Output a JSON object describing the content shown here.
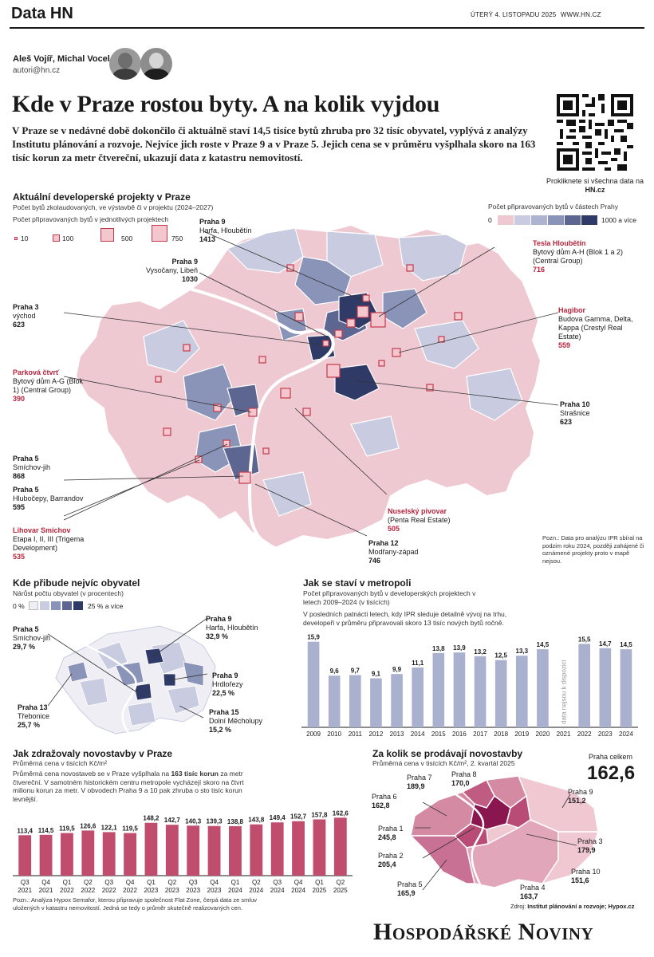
{
  "masthead": {
    "brand": "Data HN",
    "date": "ÚTERÝ 4. LISTOPADU 2025",
    "site": "WWW.HN.CZ"
  },
  "authors": {
    "names": "Aleš Vojíř, Michal Vocel",
    "email": "autori@hn.cz"
  },
  "headline": "Kde v Praze rostou byty. A na kolik vyjdou",
  "lead": "V Praze se v nedávné době dokončilo či aktuálně staví 14,5 tisíce bytů zhruba pro 32 tisíc obyvatel, vyplývá z analýzy Institutu plánování a rozvoje. Nejvíce jich roste v Praze 9 a v Praze 5. Jejich cena se v průměru vyšplhala skoro na 163 tisíc korun za metr čtvereční, ukazují data z katastru nemovitostí.",
  "qr": {
    "caption": "Prokliknete si všechna data na",
    "caption_site": "HN.cz"
  },
  "colors": {
    "accent": "#b8243c",
    "bar_blue": "#a9b1cf",
    "bar_red": "#c04c6e",
    "map_pink": "#efc9d2",
    "map_light": "#c9cce0",
    "map_mid": "#8a93b8",
    "map_dark": "#2f3b66"
  },
  "map": {
    "title": "Aktuální developerské projekty v Praze",
    "subtitle": "Počet bytů zkolaudovaných, ve výstavbě či v projektu (2024–2027)",
    "size_legend_title": "Počet připravovaných bytů v jednotlivých projektech",
    "size_legend": [
      "10",
      "100",
      "500",
      "750"
    ],
    "color_legend_title": "Počet připravovaných bytů v částech Prahy",
    "color_legend_min": "0",
    "color_legend_max": "1000 a více",
    "note": "Pozn.: Data pro analýzu IPR sbíral na podzim roku 2024, později zahájené či oznámené projekty proto v mapě nejsou.",
    "callouts": [
      {
        "name": "Praha 9",
        "desc": "Harfa, Hloubětín",
        "value": "1413",
        "red": false
      },
      {
        "name": "Praha 9",
        "desc": "Vysočany, Libeň",
        "value": "1030",
        "red": false
      },
      {
        "name": "Praha 3",
        "desc": "východ",
        "value": "623",
        "red": false
      },
      {
        "name": "Parková čtvrť",
        "desc": "Bytový dům A-G (Blok 1) (Central Group)",
        "value": "390",
        "red": true
      },
      {
        "name": "Praha 5",
        "desc": "Smíchov-jih",
        "value": "868",
        "red": false
      },
      {
        "name": "Praha 5",
        "desc": "Hlubočepy, Barrandov",
        "value": "595",
        "red": false
      },
      {
        "name": "Lihovar Smíchov",
        "desc": "Etapa I, II, III (Trigema Development)",
        "value": "535",
        "red": true
      },
      {
        "name": "Tesla Hloubětín",
        "desc": "Bytový dům A-H (Blok 1 a 2) (Central Group)",
        "value": "716",
        "red": true
      },
      {
        "name": "Hagibor",
        "desc": "Budova Gamma, Delta, Kappa (Crestyl Real Estate)",
        "value": "559",
        "red": true
      },
      {
        "name": "Praha 10",
        "desc": "Strašnice",
        "value": "623",
        "red": false
      },
      {
        "name": "Nuselský pivovar",
        "desc": "(Penta Real Estate)",
        "value": "505",
        "red": true
      },
      {
        "name": "Praha 12",
        "desc": "Modřany-západ",
        "value": "746",
        "red": false
      }
    ]
  },
  "growth": {
    "title": "Kde přibude nejvíc obyvatel",
    "subtitle": "Nárůst počtu obyvatel (v procentech)",
    "legend_min": "0 %",
    "legend_max": "25 % a více",
    "callouts": [
      {
        "name": "Praha 5",
        "desc": "Smíchov-jih",
        "value": "29,7 %"
      },
      {
        "name": "Praha 9",
        "desc": "Harfa, Hloubětín",
        "value": "32,9 %"
      },
      {
        "name": "Praha 9",
        "desc": "Hrdlořezy",
        "value": "22,5 %"
      },
      {
        "name": "Praha 13",
        "desc": "Třebonice",
        "value": "25,7 %"
      },
      {
        "name": "Praha 15",
        "desc": "Dolní Měcholupy",
        "value": "15,2 %"
      }
    ]
  },
  "chart_data": [
    {
      "type": "bar",
      "title": "Jak se staví v metropoli",
      "subtitle": "Počet připravovaných bytů v developerských projektech v letech 2009–2024 (v tisících)",
      "note": "V posledních patnácti letech, kdy IPR sleduje detailně vývoj na trhu, developeři v průměru připravovali skoro 13 tisíc nových bytů ročně.",
      "missing_label": "data nejsou k dispozici",
      "categories": [
        "2009",
        "2010",
        "2011",
        "2012",
        "2013",
        "2014",
        "2015",
        "2016",
        "2017",
        "2018",
        "2019",
        "2020",
        "2021",
        "2022",
        "2023",
        "2024"
      ],
      "values": [
        15.9,
        9.6,
        9.7,
        9.1,
        9.9,
        11.1,
        13.8,
        13.9,
        13.2,
        12.5,
        13.3,
        14.5,
        null,
        15.5,
        14.7,
        14.5
      ],
      "labels": [
        "15,9",
        "9,6",
        "9,7",
        "9,1",
        "9,9",
        "11,1",
        "13,8",
        "13,9",
        "13,2",
        "12,5",
        "13,3",
        "14,5",
        "",
        "15,5",
        "14,7",
        "14,5"
      ],
      "ylim": [
        0,
        16
      ]
    },
    {
      "type": "bar",
      "title": "Jak zdražovaly novostavby v Praze",
      "subtitle": "Průměrná cena v tisících Kč/m²",
      "note_pre": "Průměrná cena novostaveb se v Praze vyšplhala na ",
      "note_bold": "163 tisíc korun",
      "note_post": " za metr čtvereční. V samotném historickém centru metropole vycházejí skoro na čtvrt milionu korun za metr. V obvodech Praha 9 a 10 pak zhruba o sto tisíc korun levnější.",
      "source": "Pozn.: Analýza Hypox Semafor, kterou připravuje společnost Flat Zone, čerpá data ze smluv uložených v katastru nemovitostí. Jedná se tedy o průměr skutečně realizovaných cen.",
      "categories": [
        "Q3 2021",
        "Q4 2021",
        "Q1 2022",
        "Q2 2022",
        "Q3 2022",
        "Q4 2022",
        "Q1 2023",
        "Q2 2023",
        "Q3 2023",
        "Q4 2023",
        "Q1 2024",
        "Q2 2024",
        "Q3 2024",
        "Q4 2024",
        "Q1 2025",
        "Q2 2025"
      ],
      "values": [
        113.4,
        114.5,
        119.5,
        126.6,
        122.1,
        119.5,
        148.2,
        142.7,
        140.3,
        139.3,
        138.8,
        143.8,
        149.4,
        152.7,
        157.8,
        162.6
      ],
      "labels": [
        "113,4",
        "114,5",
        "119,5",
        "126,6",
        "122,1",
        "119,5",
        "148,2",
        "142,7",
        "140,3",
        "139,3",
        "138,8",
        "143,8",
        "149,4",
        "152,7",
        "157,8",
        "162,6"
      ],
      "ylim": [
        0,
        170
      ]
    }
  ],
  "prices": {
    "title": "Za kolik se prodávají novostavby",
    "subtitle": "Průměrná cena v tisících Kč/m², 2. kvartál 2025",
    "total_label": "Praha celkem",
    "total_value": "162,6",
    "districts": [
      {
        "name": "Praha 7",
        "value": "189,9"
      },
      {
        "name": "Praha 8",
        "value": "170,0"
      },
      {
        "name": "Praha 6",
        "value": "162,8"
      },
      {
        "name": "Praha 9",
        "value": "151,2"
      },
      {
        "name": "Praha 1",
        "value": "245,8"
      },
      {
        "name": "Praha 3",
        "value": "179,9"
      },
      {
        "name": "Praha 2",
        "value": "205,4"
      },
      {
        "name": "Praha 10",
        "value": "151,6"
      },
      {
        "name": "Praha 5",
        "value": "165,9"
      },
      {
        "name": "Praha 4",
        "value": "163,7"
      }
    ],
    "source_prefix": "Zdroj: ",
    "source": "Institut plánování a rozvoje; Hypox.cz"
  },
  "footer_brand": "Hospodářské Noviny"
}
